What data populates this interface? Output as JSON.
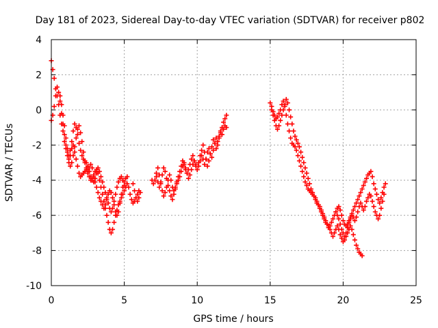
{
  "chart_data": {
    "type": "scatter",
    "title": "Day 181 of 2023, Sidereal Day-to-day VTEC variation (SDTVAR) for receiver p802",
    "xlabel": "GPS time / hours",
    "ylabel": "SDTVAR / TECUs",
    "xlim": [
      0,
      25
    ],
    "ylim": [
      -10,
      4
    ],
    "xticks": [
      0,
      5,
      10,
      15,
      20,
      25
    ],
    "yticks": [
      -10,
      -8,
      -6,
      -4,
      -2,
      0,
      2,
      4
    ],
    "grid": true,
    "marker": "+",
    "color": "#ff0000",
    "segments": [
      {
        "name": "segment-1",
        "x": [
          0.0,
          0.1,
          0.2,
          0.3,
          0.4,
          0.5,
          0.6,
          0.7,
          0.8,
          0.9,
          1.0,
          1.1,
          1.2,
          1.3,
          1.4,
          1.5,
          1.6,
          1.7,
          1.8,
          1.9,
          2.0,
          2.1,
          2.2,
          2.3,
          2.4,
          2.5,
          2.6,
          2.7,
          2.8,
          2.9,
          3.0,
          3.1,
          3.2,
          3.3,
          3.4,
          3.5,
          3.6,
          3.7,
          3.8,
          3.9,
          4.0,
          4.1,
          4.2,
          4.3,
          4.4,
          4.5,
          4.6,
          4.7,
          4.8,
          4.9,
          5.0,
          5.1,
          5.2,
          5.3,
          5.4,
          5.5,
          5.6,
          5.7,
          5.8,
          5.9,
          6.0
        ],
        "y": [
          2.8,
          2.3,
          1.8,
          1.2,
          0.8,
          0.3,
          -0.3,
          -0.8,
          -1.2,
          -1.8,
          -2.2,
          -2.6,
          -3.0,
          -2.6,
          -2.2,
          -2.0,
          -2.4,
          -2.8,
          -3.2,
          -3.6,
          -3.8,
          -3.7,
          -3.6,
          -3.5,
          -3.4,
          -3.6,
          -3.8,
          -4.0,
          -3.9,
          -3.8,
          -3.5,
          -3.4,
          -3.6,
          -4.0,
          -4.4,
          -4.8,
          -5.2,
          -5.6,
          -6.0,
          -6.4,
          -6.8,
          -7.0,
          -6.8,
          -6.4,
          -6.0,
          -5.7,
          -5.4,
          -5.2,
          -5.0,
          -4.8,
          -4.6,
          -4.4,
          -4.2,
          -4.4,
          -4.8,
          -5.1,
          -5.3,
          -5.2,
          -5.0,
          -4.8,
          -4.6
        ]
      },
      {
        "name": "segment-2",
        "x": [
          0.0,
          0.1,
          0.2,
          0.3,
          0.4,
          0.5,
          0.6,
          0.7,
          0.8,
          0.9,
          1.0,
          1.1,
          1.2,
          1.3,
          1.4,
          1.5,
          1.6,
          1.7,
          1.8,
          1.9,
          2.0,
          2.1,
          2.2,
          2.3,
          2.4,
          2.5,
          2.6,
          2.7,
          2.8,
          2.9,
          3.0,
          3.1,
          3.2,
          3.3,
          3.4,
          3.5,
          3.6,
          3.7,
          3.8,
          3.9,
          4.0,
          4.1,
          4.2,
          4.3,
          4.4,
          4.5,
          4.6,
          4.7,
          4.8,
          4.9,
          5.0
        ],
        "y": [
          -0.6,
          -0.3,
          0.2,
          0.8,
          1.3,
          1.0,
          0.5,
          -0.2,
          -0.8,
          -1.4,
          -2.0,
          -2.4,
          -2.6,
          -2.3,
          -1.8,
          -1.2,
          -0.8,
          -1.0,
          -1.4,
          -1.9,
          -2.3,
          -2.6,
          -2.8,
          -2.9,
          -3.0,
          -3.2,
          -3.5,
          -3.8,
          -4.0,
          -4.1,
          -3.9,
          -3.6,
          -3.3,
          -3.5,
          -3.8,
          -4.1,
          -4.4,
          -4.7,
          -5.0,
          -5.3,
          -5.6,
          -5.8,
          -5.6,
          -5.2,
          -4.8,
          -4.4,
          -4.1,
          -3.9,
          -3.8,
          -4.0,
          -4.3
        ]
      },
      {
        "name": "segment-3",
        "x": [
          0.6,
          0.7,
          0.8,
          0.9,
          1.0,
          1.1,
          1.2,
          1.3,
          1.4,
          1.5,
          1.6,
          1.7,
          1.8,
          1.9,
          2.0,
          2.1,
          2.2,
          2.3,
          2.4,
          2.5,
          2.6,
          2.7,
          2.8,
          2.9,
          3.0,
          3.1,
          3.2,
          3.3,
          3.4,
          3.5,
          3.6,
          3.7,
          3.8,
          3.9,
          4.0,
          4.1,
          4.2,
          4.3,
          4.4,
          4.5,
          4.6,
          4.7,
          4.8,
          4.9,
          5.0,
          5.1,
          5.2
        ],
        "y": [
          0.8,
          0.3,
          -0.3,
          -0.9,
          -1.6,
          -2.2,
          -2.8,
          -3.2,
          -3.0,
          -2.6,
          -2.1,
          -1.6,
          -1.1,
          -0.9,
          -1.3,
          -1.8,
          -2.4,
          -3.0,
          -3.3,
          -3.4,
          -3.3,
          -3.1,
          -3.3,
          -3.7,
          -4.1,
          -4.4,
          -4.7,
          -5.0,
          -5.2,
          -5.4,
          -5.6,
          -5.4,
          -5.1,
          -4.8,
          -4.6,
          -4.7,
          -5.0,
          -5.4,
          -5.8,
          -6.0,
          -5.8,
          -5.3,
          -4.8,
          -4.4,
          -4.1,
          -3.9,
          -3.8
        ]
      },
      {
        "name": "segment-4",
        "x": [
          5.6,
          5.7,
          5.8,
          5.9,
          6.0,
          6.1
        ],
        "y": [
          -4.2,
          -4.6,
          -5.0,
          -5.2,
          -5.0,
          -4.7
        ]
      },
      {
        "name": "segment-5",
        "x": [
          6.9,
          7.0,
          7.1,
          7.2,
          7.3,
          7.4,
          7.5,
          7.6,
          7.7,
          7.8,
          7.9,
          8.0,
          8.1,
          8.2,
          8.3,
          8.4,
          8.5,
          8.6,
          8.7,
          8.8,
          8.9,
          9.0,
          9.1,
          9.2,
          9.3,
          9.4,
          9.5,
          9.6,
          9.7,
          9.8,
          9.9,
          10.0,
          10.1,
          10.2,
          10.3,
          10.4,
          10.5,
          10.6,
          10.7,
          10.8,
          10.9,
          11.0,
          11.1,
          11.2,
          11.3,
          11.4,
          11.5,
          11.6,
          11.7,
          11.8,
          11.9,
          12.0
        ],
        "y": [
          -4.0,
          -4.2,
          -4.0,
          -3.6,
          -3.3,
          -3.7,
          -4.2,
          -4.6,
          -4.9,
          -4.7,
          -4.4,
          -4.0,
          -3.7,
          -4.0,
          -4.4,
          -4.6,
          -4.4,
          -4.1,
          -3.8,
          -3.5,
          -3.2,
          -2.9,
          -3.1,
          -3.4,
          -3.6,
          -3.4,
          -3.1,
          -2.8,
          -2.6,
          -2.9,
          -3.2,
          -3.4,
          -3.0,
          -2.6,
          -2.3,
          -2.0,
          -2.4,
          -2.8,
          -3.2,
          -2.9,
          -2.5,
          -2.1,
          -1.7,
          -1.9,
          -2.2,
          -2.0,
          -1.6,
          -1.3,
          -1.0,
          -0.7,
          -0.5,
          -0.3
        ]
      },
      {
        "name": "segment-6",
        "x": [
          7.2,
          7.3,
          7.4,
          7.5,
          7.6,
          7.7,
          7.8,
          7.9,
          8.0,
          8.1,
          8.2,
          8.3,
          8.4,
          8.5,
          8.6,
          8.7,
          8.8,
          8.9,
          9.0,
          9.1,
          9.2,
          9.3,
          9.4,
          9.5,
          9.6,
          9.7,
          9.8,
          9.9,
          10.0,
          10.1,
          10.2,
          10.3,
          10.4,
          10.5,
          10.6,
          10.7,
          10.8,
          10.9,
          11.0,
          11.1,
          11.2,
          11.3,
          11.4,
          11.5,
          11.6,
          11.7,
          11.8,
          11.9,
          12.0
        ],
        "y": [
          -3.8,
          -4.1,
          -4.4,
          -4.1,
          -3.7,
          -3.3,
          -3.5,
          -3.9,
          -4.3,
          -4.6,
          -4.9,
          -5.1,
          -4.8,
          -4.5,
          -4.2,
          -4.0,
          -3.8,
          -3.5,
          -3.2,
          -3.0,
          -3.3,
          -3.6,
          -3.9,
          -3.7,
          -3.4,
          -3.1,
          -2.9,
          -3.1,
          -3.4,
          -3.2,
          -2.9,
          -2.6,
          -2.8,
          -3.1,
          -2.8,
          -2.4,
          -2.2,
          -2.5,
          -2.7,
          -2.3,
          -1.9,
          -1.6,
          -1.8,
          -1.5,
          -1.2,
          -1.4,
          -1.1,
          -0.9,
          -1.0
        ]
      },
      {
        "name": "segment-7",
        "x": [
          15.0,
          15.1,
          15.2,
          15.3,
          15.4,
          15.5,
          15.6,
          15.7,
          15.8,
          15.9,
          16.0,
          16.1,
          16.2,
          16.3,
          16.4,
          16.5,
          16.6,
          16.7,
          16.8,
          16.9,
          17.0,
          17.1,
          17.2,
          17.3,
          17.4,
          17.5,
          17.6,
          17.7,
          17.8,
          17.9,
          18.0,
          18.1,
          18.2,
          18.3,
          18.4,
          18.5,
          18.6,
          18.7,
          18.8,
          18.9,
          19.0,
          19.1,
          19.2,
          19.3,
          19.4,
          19.5,
          19.6,
          19.7,
          19.8,
          19.9,
          20.0,
          20.1,
          20.2,
          20.3,
          20.4,
          20.5,
          20.6,
          20.7,
          20.8,
          20.9,
          21.0,
          21.1,
          21.2,
          21.3
        ],
        "y": [
          0.4,
          0.2,
          -0.1,
          -0.3,
          -0.5,
          -0.4,
          -0.2,
          0.0,
          0.3,
          0.5,
          0.2,
          -0.3,
          -0.8,
          -1.2,
          -1.6,
          -1.9,
          -2.0,
          -2.1,
          -2.3,
          -2.6,
          -2.9,
          -3.2,
          -3.5,
          -3.8,
          -4.1,
          -4.3,
          -4.5,
          -4.6,
          -4.7,
          -4.8,
          -4.9,
          -5.0,
          -5.2,
          -5.4,
          -5.6,
          -5.8,
          -6.0,
          -6.2,
          -6.4,
          -6.5,
          -6.6,
          -6.8,
          -7.0,
          -7.2,
          -7.0,
          -6.8,
          -6.6,
          -6.8,
          -7.1,
          -7.3,
          -7.5,
          -7.4,
          -7.2,
          -7.0,
          -6.8,
          -6.6,
          -6.8,
          -7.1,
          -7.4,
          -7.7,
          -7.9,
          -8.1,
          -8.2,
          -8.3
        ]
      },
      {
        "name": "segment-8",
        "x": [
          15.1,
          15.2,
          15.3,
          15.4,
          15.5,
          15.6,
          15.7,
          15.8,
          15.9,
          16.0,
          16.1,
          16.2,
          16.3,
          16.4,
          16.5,
          16.6,
          16.7,
          16.8,
          16.9,
          17.0,
          17.1,
          17.2,
          17.3,
          17.4,
          17.5,
          17.6,
          17.7,
          17.8,
          17.9,
          18.0,
          18.1,
          18.2,
          18.3,
          18.4,
          18.5,
          18.6,
          18.7,
          18.8,
          18.9,
          19.0,
          19.1,
          19.2,
          19.3,
          19.4,
          19.5,
          19.6,
          19.7,
          19.8,
          19.9,
          20.0,
          20.1,
          20.2,
          20.3,
          20.4,
          20.5,
          20.6,
          20.7,
          20.8,
          20.9,
          21.0,
          21.1,
          21.2,
          21.3,
          21.4,
          21.5,
          21.6,
          21.7,
          21.8,
          21.9,
          22.0,
          22.1,
          22.2,
          22.3,
          22.4,
          22.5,
          22.6,
          22.7,
          22.8,
          22.9
        ],
        "y": [
          0.0,
          -0.3,
          -0.6,
          -0.9,
          -1.1,
          -0.9,
          -0.6,
          -0.3,
          0.0,
          0.3,
          0.6,
          0.4,
          0.0,
          -0.4,
          -0.8,
          -1.2,
          -1.5,
          -1.7,
          -1.9,
          -2.1,
          -2.4,
          -2.7,
          -3.0,
          -3.3,
          -3.6,
          -3.9,
          -4.2,
          -4.5,
          -4.7,
          -4.9,
          -5.1,
          -5.3,
          -5.4,
          -5.5,
          -5.7,
          -5.9,
          -6.1,
          -6.3,
          -6.5,
          -6.7,
          -6.6,
          -6.4,
          -6.2,
          -6.0,
          -5.8,
          -5.6,
          -5.5,
          -5.7,
          -6.0,
          -6.3,
          -6.5,
          -6.6,
          -6.5,
          -6.3,
          -6.1,
          -5.9,
          -5.7,
          -5.5,
          -5.3,
          -5.1,
          -4.9,
          -4.7,
          -4.5,
          -4.3,
          -4.1,
          -3.9,
          -3.7,
          -3.6,
          -3.5,
          -3.8,
          -4.2,
          -4.5,
          -4.8,
          -5.1,
          -5.3,
          -5.0,
          -4.7,
          -4.4,
          -4.2
        ]
      },
      {
        "name": "segment-9",
        "x": [
          19.5,
          19.6,
          19.7,
          19.8,
          19.9,
          20.0,
          20.1,
          20.2,
          20.3,
          20.4,
          20.5,
          20.6,
          20.7,
          20.8,
          20.9,
          21.0,
          21.1,
          21.2,
          21.3,
          21.4,
          21.5,
          21.6,
          21.7,
          21.8,
          21.9,
          22.0,
          22.1,
          22.2,
          22.3,
          22.4,
          22.5,
          22.6,
          22.7,
          22.8
        ],
        "y": [
          -5.8,
          -6.0,
          -6.2,
          -6.5,
          -6.8,
          -7.0,
          -7.2,
          -7.0,
          -6.7,
          -6.4,
          -6.2,
          -6.0,
          -6.1,
          -6.3,
          -6.1,
          -5.8,
          -5.5,
          -5.3,
          -5.5,
          -5.7,
          -5.5,
          -5.2,
          -5.0,
          -4.8,
          -4.9,
          -5.2,
          -5.5,
          -5.8,
          -6.0,
          -6.2,
          -6.0,
          -5.6,
          -5.2,
          -4.8
        ]
      }
    ]
  }
}
